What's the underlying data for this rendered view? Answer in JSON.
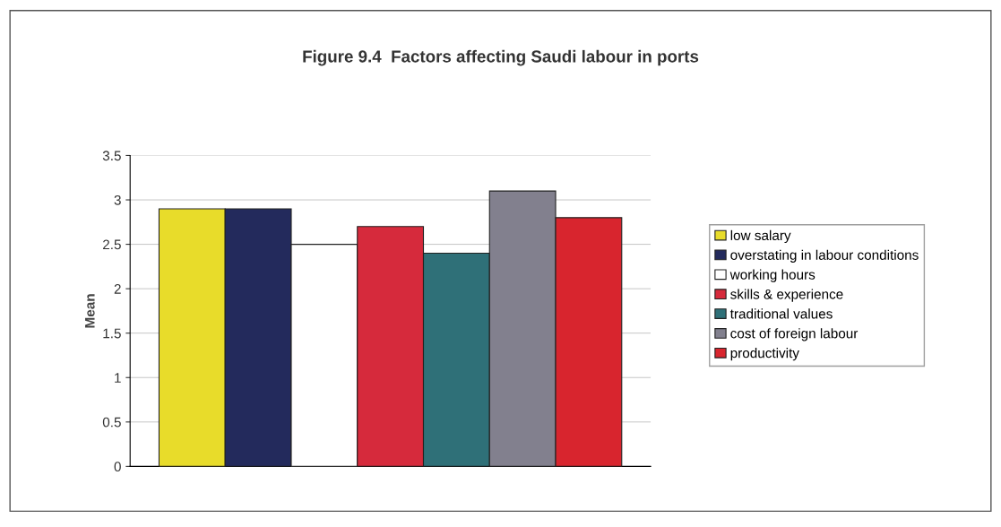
{
  "chart_data": {
    "type": "bar",
    "title": "Figure 9.4  Factors affecting Saudi labour in ports",
    "ylabel": "Mean",
    "categories": [
      null
    ],
    "series": [
      {
        "name": "low salary",
        "color": "#e8dc2a",
        "values": [
          2.9
        ]
      },
      {
        "name": "overstating in labour conditions",
        "color": "#232a5c",
        "values": [
          2.9
        ]
      },
      {
        "name": "working hours",
        "color": "#ffffff",
        "values": [
          2.5
        ]
      },
      {
        "name": "skills & experience",
        "color": "#d62a3c",
        "values": [
          2.7
        ]
      },
      {
        "name": "traditional values",
        "color": "#2f7078",
        "values": [
          2.4
        ]
      },
      {
        "name": "cost of foreign labour",
        "color": "#82808e",
        "values": [
          3.1
        ]
      },
      {
        "name": "productivity",
        "color": "#d8252e",
        "values": [
          2.8
        ]
      }
    ],
    "ylim": [
      0,
      3.5
    ],
    "yticks": [
      0,
      0.5,
      1,
      1.5,
      2,
      2.5,
      3,
      3.5
    ],
    "grid": "y",
    "legend": "right"
  }
}
